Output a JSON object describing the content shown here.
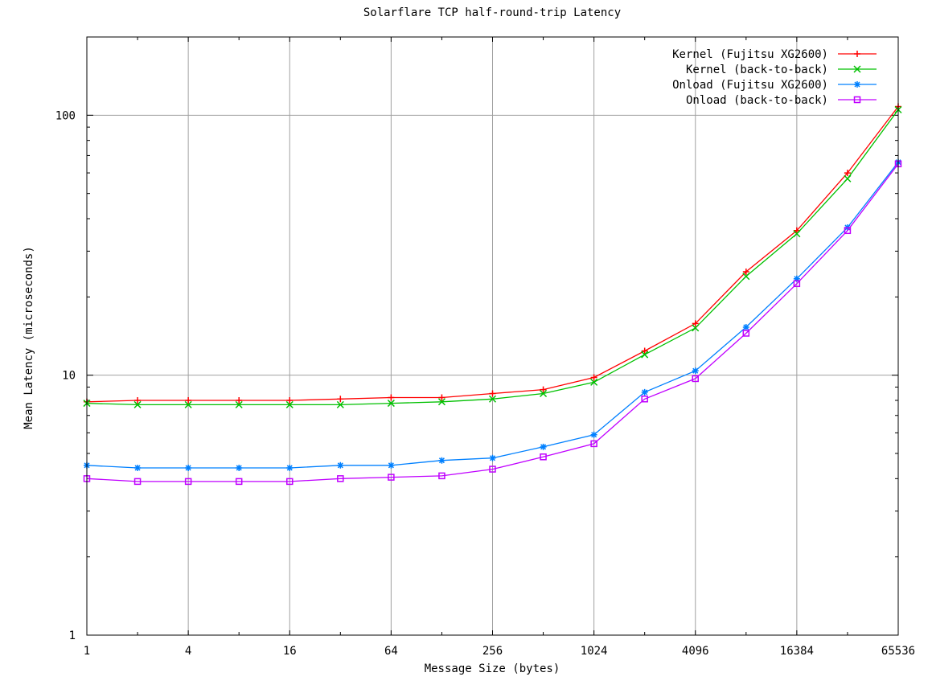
{
  "chart_data": {
    "type": "line",
    "title": "Solarflare TCP half-round-trip Latency",
    "xlabel": "Message Size (bytes)",
    "ylabel": "Mean Latency (microseconds)",
    "x_scale": "log2",
    "y_scale": "log10",
    "xlim": [
      1,
      65536
    ],
    "ylim": [
      1,
      200
    ],
    "grid": true,
    "legend_position": "top-right",
    "x_ticks": [
      1,
      4,
      16,
      64,
      256,
      1024,
      4096,
      16384,
      65536
    ],
    "x_tick_labels": [
      "1",
      "4",
      "16",
      "64",
      "256",
      "1024",
      "4096",
      "16384",
      "65536"
    ],
    "y_ticks": [
      1,
      10,
      100
    ],
    "y_tick_labels": [
      "1",
      "10",
      "100"
    ],
    "x": [
      1,
      2,
      4,
      8,
      16,
      32,
      64,
      128,
      256,
      512,
      1024,
      2048,
      4096,
      8192,
      16384,
      32768,
      65536
    ],
    "series": [
      {
        "name": "Kernel (Fujitsu XG2600)",
        "color": "#ff0000",
        "marker": "plus",
        "values": [
          7.9,
          8.0,
          8.0,
          8.0,
          8.0,
          8.1,
          8.2,
          8.2,
          8.5,
          8.8,
          9.8,
          12.4,
          15.8,
          25,
          36,
          60,
          108
        ]
      },
      {
        "name": "Kernel (back-to-back)",
        "color": "#00c000",
        "marker": "cross",
        "values": [
          7.8,
          7.7,
          7.7,
          7.7,
          7.7,
          7.7,
          7.8,
          7.9,
          8.1,
          8.5,
          9.4,
          12.0,
          15.2,
          24,
          35,
          57,
          105
        ]
      },
      {
        "name": "Onload (Fujitsu XG2600)",
        "color": "#0080ff",
        "marker": "star",
        "values": [
          4.5,
          4.4,
          4.4,
          4.4,
          4.4,
          4.5,
          4.5,
          4.7,
          4.8,
          5.3,
          5.9,
          8.6,
          10.4,
          15.3,
          23.5,
          37,
          66
        ]
      },
      {
        "name": "Onload (back-to-back)",
        "color": "#c000ff",
        "marker": "box",
        "values": [
          4.0,
          3.9,
          3.9,
          3.9,
          3.9,
          4.0,
          4.05,
          4.1,
          4.35,
          4.85,
          5.45,
          8.1,
          9.7,
          14.5,
          22.5,
          36,
          65
        ]
      }
    ]
  }
}
